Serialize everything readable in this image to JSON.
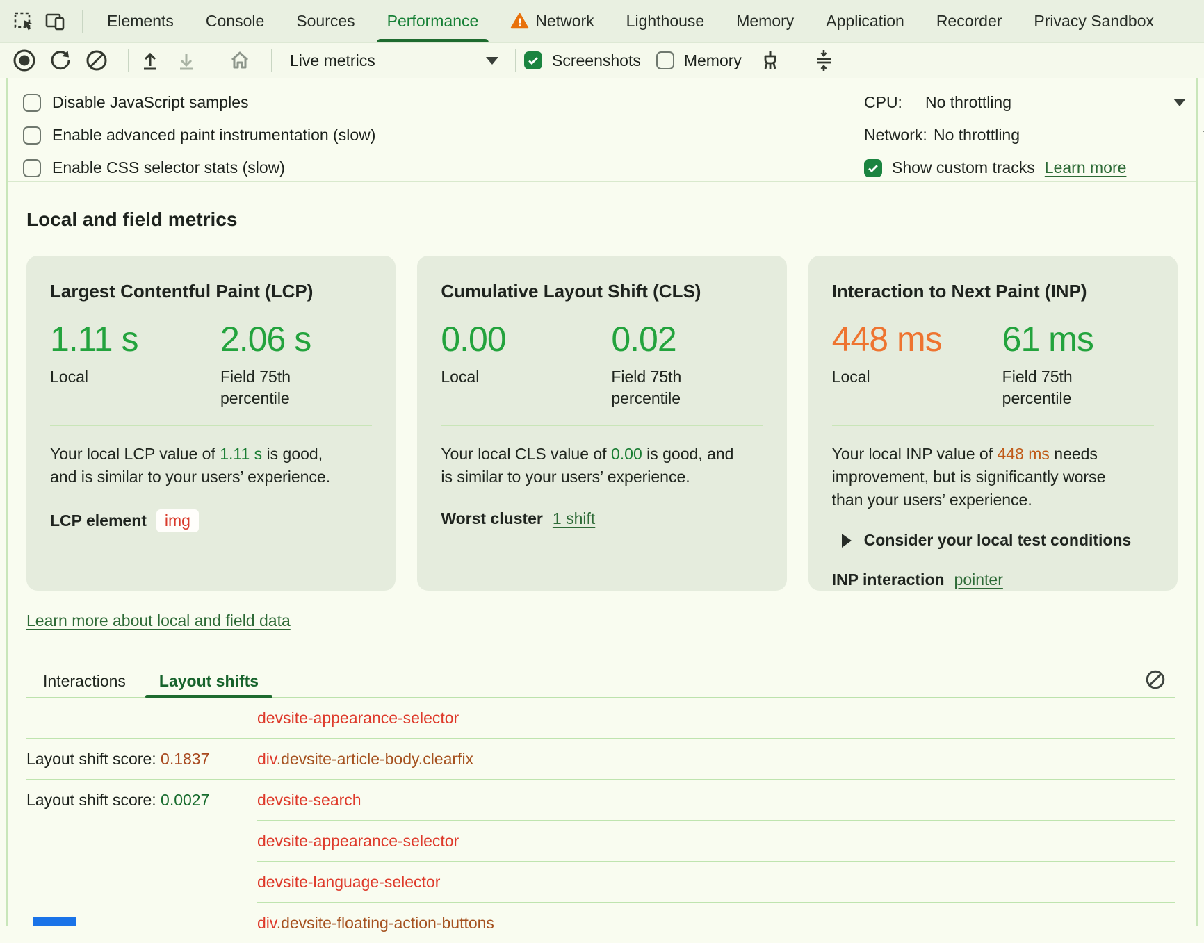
{
  "tabbar": {
    "tabs": [
      {
        "label": "Elements"
      },
      {
        "label": "Console"
      },
      {
        "label": "Sources"
      },
      {
        "label": "Performance",
        "active": true
      },
      {
        "label": "Network",
        "warning": true
      },
      {
        "label": "Lighthouse"
      },
      {
        "label": "Memory"
      },
      {
        "label": "Application"
      },
      {
        "label": "Recorder"
      },
      {
        "label": "Privacy Sandbox"
      }
    ]
  },
  "toolbar": {
    "mode_select_value": "Live metrics",
    "screenshots_label": "Screenshots",
    "memory_label": "Memory"
  },
  "options": {
    "checkboxes": [
      {
        "label": "Disable JavaScript samples",
        "checked": false
      },
      {
        "label": "Enable advanced paint instrumentation (slow)",
        "checked": false
      },
      {
        "label": "Enable CSS selector stats (slow)",
        "checked": false
      }
    ],
    "cpu_label": "CPU:",
    "cpu_value": "No throttling",
    "network_label": "Network:",
    "network_value": "No throttling",
    "custom_tracks_label": "Show custom tracks",
    "custom_tracks_checked": true,
    "custom_tracks_link": "Learn more"
  },
  "metrics": {
    "heading": "Local and field metrics",
    "local_label": "Local",
    "field_label": "Field 75th percentile",
    "lcp": {
      "title": "Largest Contentful Paint (LCP)",
      "local_value": "1.11 s",
      "field_value": "2.06 s",
      "summary_prefix": "Your local LCP value of ",
      "summary_value": "1.11 s",
      "summary_suffix": " is good,\nand is similar to your users’ experience.",
      "footer_label": "LCP element",
      "footer_chip": "img"
    },
    "cls": {
      "title": "Cumulative Layout Shift (CLS)",
      "local_value": "0.00",
      "field_value": "0.02",
      "summary_prefix": "Your local CLS value of ",
      "summary_value": "0.00",
      "summary_suffix": " is good, and\nis similar to your users’ experience.",
      "footer_label": "Worst cluster",
      "footer_link": "1 shift"
    },
    "inp": {
      "title": "Interaction to Next Paint (INP)",
      "local_value": "448 ms",
      "field_value": "61 ms",
      "summary_prefix": "Your local INP value of ",
      "summary_value": "448 ms",
      "summary_suffix": " needs\nimprovement, but is significantly worse\nthan your users’ experience.",
      "disclosure_label": "Consider your local test conditions",
      "footer_label": "INP interaction",
      "footer_link": "pointer"
    },
    "learn_link": "Learn more about local and field data"
  },
  "shifts": {
    "tabs": [
      {
        "label": "Interactions"
      },
      {
        "label": "Layout shifts",
        "active": true
      }
    ],
    "score_prefix": "Layout shift score: ",
    "rows": [
      {
        "score": "",
        "score_class": "",
        "name_tag": "",
        "name_rest": "devsite-appearance-selector",
        "name_class": "name-red",
        "sep": "full"
      },
      {
        "score": "0.1837",
        "score_class": "sc-orange",
        "name_tag": "div",
        "name_rest": ".devsite-article-body.clearfix",
        "name_class": "name-brown",
        "sep": "full"
      },
      {
        "score": "0.0027",
        "score_class": "sc-green",
        "name_tag": "",
        "name_rest": "devsite-search",
        "name_class": "name-red",
        "sep": "indent"
      },
      {
        "score": "",
        "score_class": "",
        "name_tag": "",
        "name_rest": "devsite-appearance-selector",
        "name_class": "name-red",
        "sep": "indent"
      },
      {
        "score": "",
        "score_class": "",
        "name_tag": "",
        "name_rest": "devsite-language-selector",
        "name_class": "name-red",
        "sep": "indent"
      },
      {
        "score": "",
        "score_class": "",
        "name_tag": "div",
        "name_rest": ".devsite-floating-action-buttons",
        "name_class": "name-brown",
        "sep": "none"
      }
    ]
  }
}
